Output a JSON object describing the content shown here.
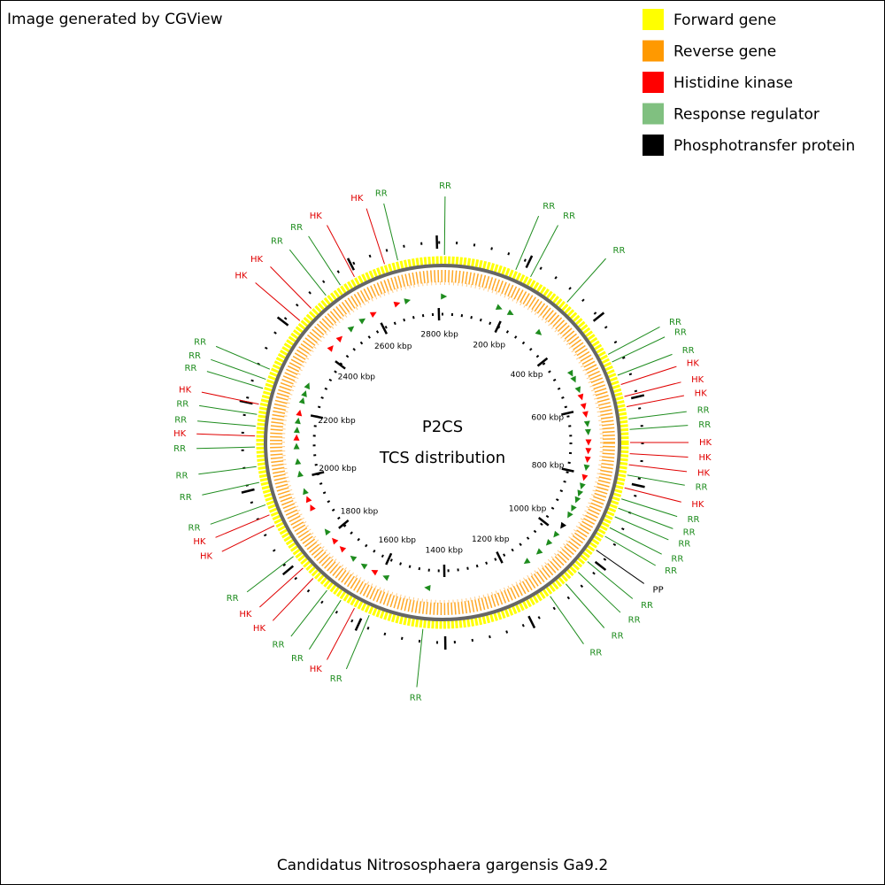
{
  "header": "Image generated by CGView",
  "legend": [
    {
      "label": "Forward gene",
      "color": "#ffff00"
    },
    {
      "label": "Reverse gene",
      "color": "#ff9900"
    },
    {
      "label": "Histidine kinase",
      "color": "#ff0000"
    },
    {
      "label": "Response regulator",
      "color": "#80c080"
    },
    {
      "label": "Phosphotransfer protein",
      "color": "#000000"
    }
  ],
  "center": {
    "title": "P2CS",
    "subtitle": "TCS distribution"
  },
  "footer": "Candidatus Nitrososphaera gargensis Ga9.2",
  "ticks": [
    "200 kbp",
    "400 kbp",
    "600 kbp",
    "800 kbp",
    "1000 kbp",
    "1200 kbp",
    "1400 kbp",
    "1600 kbp",
    "1800 kbp",
    "2000 kbp",
    "2200 kbp",
    "2400 kbp",
    "2600 kbp",
    "2800 kbp"
  ],
  "label_colors": {
    "RR": "#1e8c1e",
    "HK": "#e00000",
    "PP": "#000000"
  },
  "features": [
    "RR",
    "RR",
    "RR",
    "RR",
    "RR",
    "RR",
    "RR",
    "HK",
    "HK",
    "HK",
    "RR",
    "RR",
    "HK",
    "HK",
    "HK",
    "RR",
    "HK",
    "RR",
    "RR",
    "RR",
    "RR",
    "RR",
    "PP",
    "RR",
    "RR",
    "RR",
    "RR",
    "RR",
    "RR",
    "HK",
    "RR",
    "RR",
    "HK",
    "HK",
    "RR",
    "HK",
    "HK",
    "RR",
    "RR",
    "RR",
    "RR",
    "HK",
    "RR",
    "RR",
    "HK",
    "RR",
    "RR",
    "RR",
    "HK",
    "HK",
    "RR",
    "RR",
    "HK",
    "HK",
    "RR"
  ]
}
